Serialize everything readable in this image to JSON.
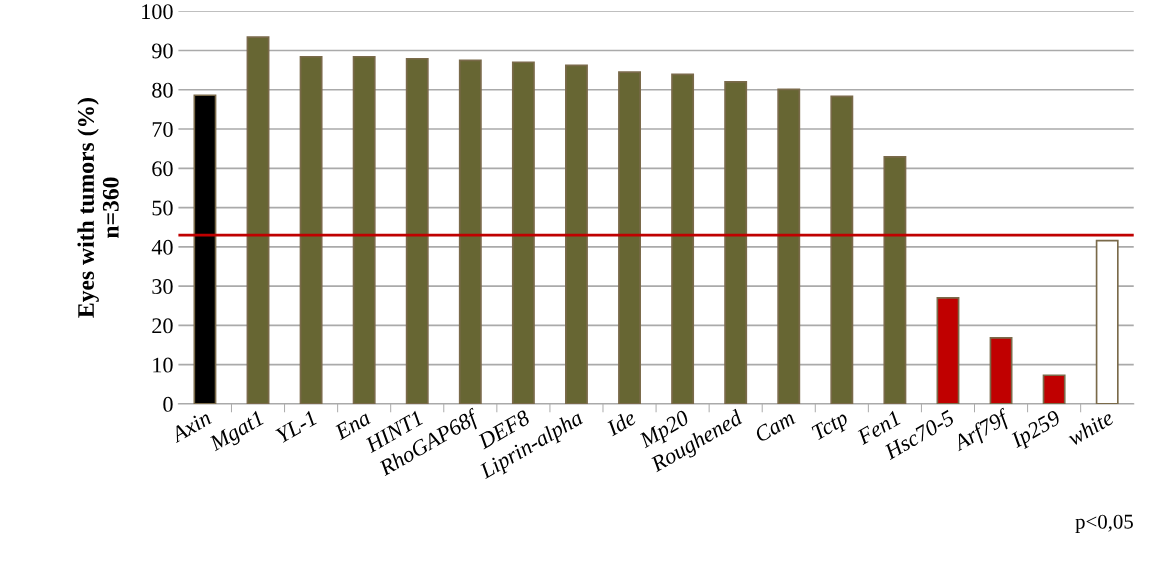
{
  "chart_data": {
    "type": "bar",
    "ylabel": "Eyes with tumors (%)\nn=360",
    "categories": [
      "Axin",
      "Mgat1",
      "YL-1",
      "Ena",
      "HINT1",
      "RhoGAP68f",
      "DEF8",
      "Liprin-alpha",
      "Ide",
      "Mp20",
      "Roughened",
      "Cam",
      "Tctp",
      "Fen1",
      "Hsc70-5",
      "Arf79f",
      "Ip259",
      "white"
    ],
    "values": [
      78.6,
      93.4,
      88.4,
      88.4,
      87.9,
      87.5,
      87.0,
      86.2,
      84.5,
      83.9,
      82.0,
      80.1,
      78.3,
      62.9,
      27.0,
      16.8,
      7.3,
      41.6
    ],
    "colors": [
      "#000000",
      "#676633",
      "#676633",
      "#676633",
      "#676633",
      "#676633",
      "#676633",
      "#676633",
      "#676633",
      "#676633",
      "#676633",
      "#676633",
      "#676633",
      "#676633",
      "#c00000",
      "#c00000",
      "#c00000",
      "#ffffff"
    ],
    "ylim": [
      0,
      100
    ],
    "yticks": [
      0,
      10,
      20,
      30,
      40,
      50,
      60,
      70,
      80,
      90,
      100
    ],
    "grid": "y",
    "ref_lines": [
      {
        "axis": "y",
        "value": 43.0,
        "color": "#c00000"
      }
    ],
    "annotations": [
      "p<0,05"
    ]
  }
}
